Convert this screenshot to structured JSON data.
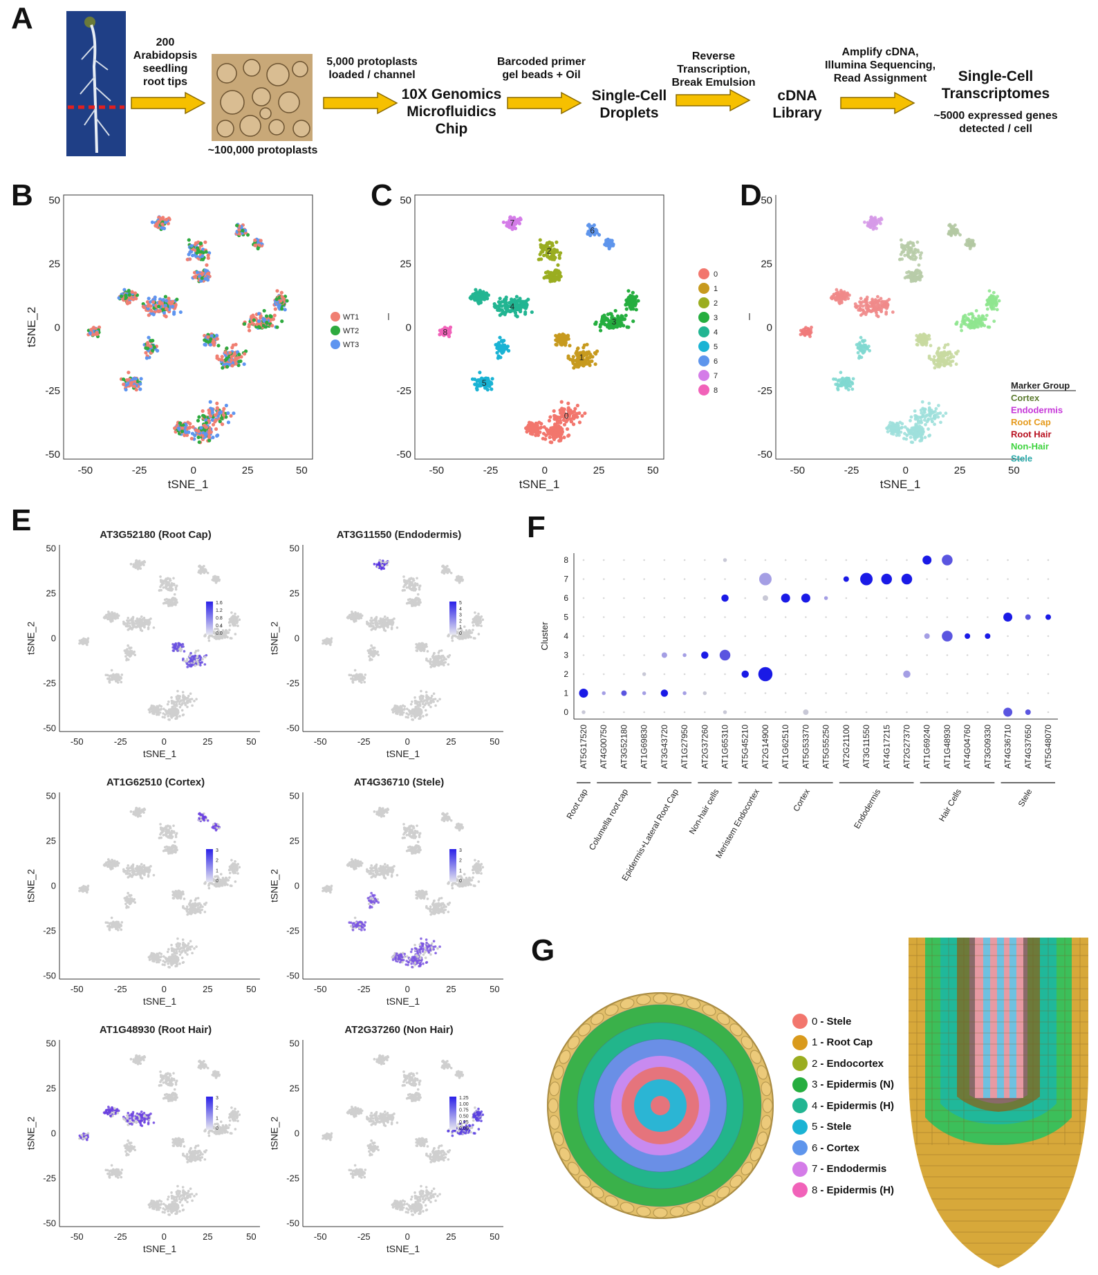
{
  "panels": {
    "A": "A",
    "B": "B",
    "C": "C",
    "D": "D",
    "E": "E",
    "F": "F",
    "G": "G"
  },
  "workflow": {
    "step1": "200 Arabidopsis seedling root tips",
    "step1_lines": [
      "200",
      "Arabidopsis",
      "seedling",
      "root tips"
    ],
    "protoplasts_caption": "~100,000 protoplasts",
    "step2_lines": [
      "5,000 protoplasts",
      "loaded / channel"
    ],
    "chip_lines": [
      "10X Genomics",
      "Microfluidics",
      "Chip"
    ],
    "step3_lines": [
      "Barcoded primer",
      "gel beads + Oil"
    ],
    "droplets_lines": [
      "Single-Cell",
      "Droplets"
    ],
    "step4_lines": [
      "Reverse",
      "Transcription,",
      "Break Emulsion"
    ],
    "library_lines": [
      "cDNA",
      "Library"
    ],
    "step5_lines": [
      "Amplify cDNA,",
      "Illumina Sequencing,",
      "Read Assignment"
    ],
    "transcriptomes_lines": [
      "Single-Cell",
      "Transcriptomes"
    ],
    "genes_lines": [
      "~5000 expressed genes",
      "detected / cell"
    ]
  },
  "tsne_axes": {
    "xlabel": "tSNE_1",
    "ylabel": "tSNE_2",
    "xticks": [
      "-50",
      "-25",
      "0",
      "25",
      "50"
    ],
    "yticks": [
      "50",
      "25",
      "0",
      "-25",
      "-50"
    ]
  },
  "panel_B": {
    "legend": [
      "WT1",
      "WT2",
      "WT3"
    ],
    "colors": [
      "#f07f72",
      "#2eaa3f",
      "#5e95f0"
    ]
  },
  "panel_C": {
    "legend": [
      "0",
      "1",
      "2",
      "3",
      "4",
      "5",
      "6",
      "7",
      "8"
    ],
    "colors": [
      "#f2766d",
      "#c79a1e",
      "#9aad20",
      "#25ae3f",
      "#22b592",
      "#1ab3d4",
      "#5e95ec",
      "#d47ce8",
      "#f162b9"
    ],
    "cluster_labels": [
      "0",
      "1",
      "2",
      "3",
      "4",
      "5",
      "6",
      "7",
      "8"
    ]
  },
  "panel_D": {
    "legend_title": "Marker Group",
    "groups": [
      "Cortex",
      "Endodermis",
      "Root Cap",
      "Root Hair",
      "Non-Hair",
      "Stele"
    ],
    "group_colors": [
      "#5b7a2e",
      "#c535d8",
      "#e59a1c",
      "#b8101f",
      "#3dd33d",
      "#2aa8a8"
    ]
  },
  "panel_E": [
    {
      "title": "AT3G52180 (Root Cap)",
      "scale": [
        "1.6",
        "1.2",
        "0.8",
        "0.4",
        "0.0"
      ]
    },
    {
      "title": "AT3G11550 (Endodermis)",
      "scale": [
        "5",
        "4",
        "3",
        "2",
        "1",
        "0"
      ]
    },
    {
      "title": "AT1G62510 (Cortex)",
      "scale": [
        "3",
        "2",
        "1",
        "0"
      ]
    },
    {
      "title": "AT4G36710 (Stele)",
      "scale": [
        "3",
        "2",
        "1",
        "0"
      ]
    },
    {
      "title": "AT1G48930 (Root Hair)",
      "scale": [
        "3",
        "2",
        "1",
        "0"
      ]
    },
    {
      "title": "AT2G37260 (Non Hair)",
      "scale": [
        "1.25",
        "1.00",
        "0.75",
        "0.50",
        "0.25",
        "0.00"
      ]
    }
  ],
  "chart_data": {
    "type": "scatter",
    "ylabel": "Cluster",
    "clusters": [
      "0",
      "1",
      "2",
      "3",
      "4",
      "5",
      "6",
      "7",
      "8"
    ],
    "genes": [
      "AT5G17520",
      "AT4G00750",
      "AT3G52180",
      "AT1G69830",
      "AT3G43720",
      "AT1G27950",
      "AT2G37260",
      "AT1G65310",
      "AT5G45210",
      "AT2G14900",
      "AT1G62510",
      "AT5G53370",
      "AT5G55250",
      "AT2G21100",
      "AT3G11550",
      "AT4G17215",
      "AT2G27370",
      "AT1G69240",
      "AT1G48930",
      "AT4G04760",
      "AT3G09330",
      "AT4G36710",
      "AT4G37650",
      "AT5G48070"
    ],
    "groups": [
      {
        "name": "Root cap",
        "from": 0,
        "to": 0
      },
      {
        "name": "Columella root cap",
        "from": 1,
        "to": 3
      },
      {
        "name": "Epidermis+Lateral Root Cap",
        "from": 4,
        "to": 5
      },
      {
        "name": "Non-hair cells",
        "from": 6,
        "to": 7
      },
      {
        "name": "Meristem Endocortex",
        "from": 8,
        "to": 9
      },
      {
        "name": "Cortex",
        "from": 10,
        "to": 12
      },
      {
        "name": "Endodermis",
        "from": 13,
        "to": 16
      },
      {
        "name": "Hair Cells",
        "from": 17,
        "to": 20
      },
      {
        "name": "Stele",
        "from": 21,
        "to": 23
      }
    ],
    "points": [
      [
        0,
        1,
        4,
        1.0
      ],
      [
        0,
        0,
        1,
        0.2
      ],
      [
        1,
        1,
        1,
        0.6
      ],
      [
        2,
        1,
        2,
        0.8
      ],
      [
        3,
        1,
        1,
        0.6
      ],
      [
        3,
        2,
        1,
        0.2
      ],
      [
        4,
        1,
        3,
        0.9
      ],
      [
        4,
        3,
        2,
        0.6
      ],
      [
        5,
        1,
        1,
        0.6
      ],
      [
        5,
        3,
        1,
        0.4
      ],
      [
        6,
        3,
        3,
        1.0
      ],
      [
        6,
        1,
        1,
        0.2
      ],
      [
        7,
        3,
        5,
        0.8
      ],
      [
        7,
        6,
        3,
        0.9
      ],
      [
        7,
        8,
        1,
        0.2
      ],
      [
        7,
        0,
        1,
        0.2
      ],
      [
        8,
        2,
        3,
        1.0
      ],
      [
        9,
        2,
        7,
        1.0
      ],
      [
        9,
        7,
        6,
        0.5
      ],
      [
        9,
        6,
        2,
        0.3
      ],
      [
        10,
        6,
        4,
        1.0
      ],
      [
        11,
        6,
        4,
        1.0
      ],
      [
        11,
        0,
        2,
        0.3
      ],
      [
        12,
        6,
        1,
        0.5
      ],
      [
        13,
        7,
        2,
        1.0
      ],
      [
        14,
        7,
        6,
        1.0
      ],
      [
        15,
        7,
        5,
        1.0
      ],
      [
        16,
        7,
        5,
        1.0
      ],
      [
        16,
        2,
        3,
        0.4
      ],
      [
        17,
        8,
        4,
        1.0
      ],
      [
        17,
        4,
        2,
        0.4
      ],
      [
        18,
        8,
        5,
        0.7
      ],
      [
        18,
        4,
        5,
        0.8
      ],
      [
        19,
        4,
        2,
        1.0
      ],
      [
        20,
        4,
        2,
        1.0
      ],
      [
        21,
        5,
        4,
        0.9
      ],
      [
        21,
        0,
        4,
        0.7
      ],
      [
        22,
        5,
        2,
        0.7
      ],
      [
        22,
        0,
        2,
        0.7
      ],
      [
        23,
        5,
        2,
        1.0
      ]
    ]
  },
  "panel_G": {
    "legend": [
      {
        "num": "0",
        "text": "- Stele",
        "color": "#f2766d"
      },
      {
        "num": "1",
        "text": "- Root Cap",
        "color": "#d99a1c"
      },
      {
        "num": "2",
        "text": "- Endocortex",
        "color": "#9aad20"
      },
      {
        "num": "3",
        "text": "- Epidermis (N)",
        "color": "#25ae3f"
      },
      {
        "num": "4",
        "text": "- Epidermis (H)",
        "color": "#22b592"
      },
      {
        "num": "5",
        "text": "- Stele",
        "color": "#1ab3d4"
      },
      {
        "num": "6",
        "text": "- Cortex",
        "color": "#5e95ec"
      },
      {
        "num": "7",
        "text": "- Endodermis",
        "color": "#d47ce8"
      },
      {
        "num": "8",
        "text": "- Epidermis (H)",
        "color": "#f162b9"
      }
    ]
  }
}
